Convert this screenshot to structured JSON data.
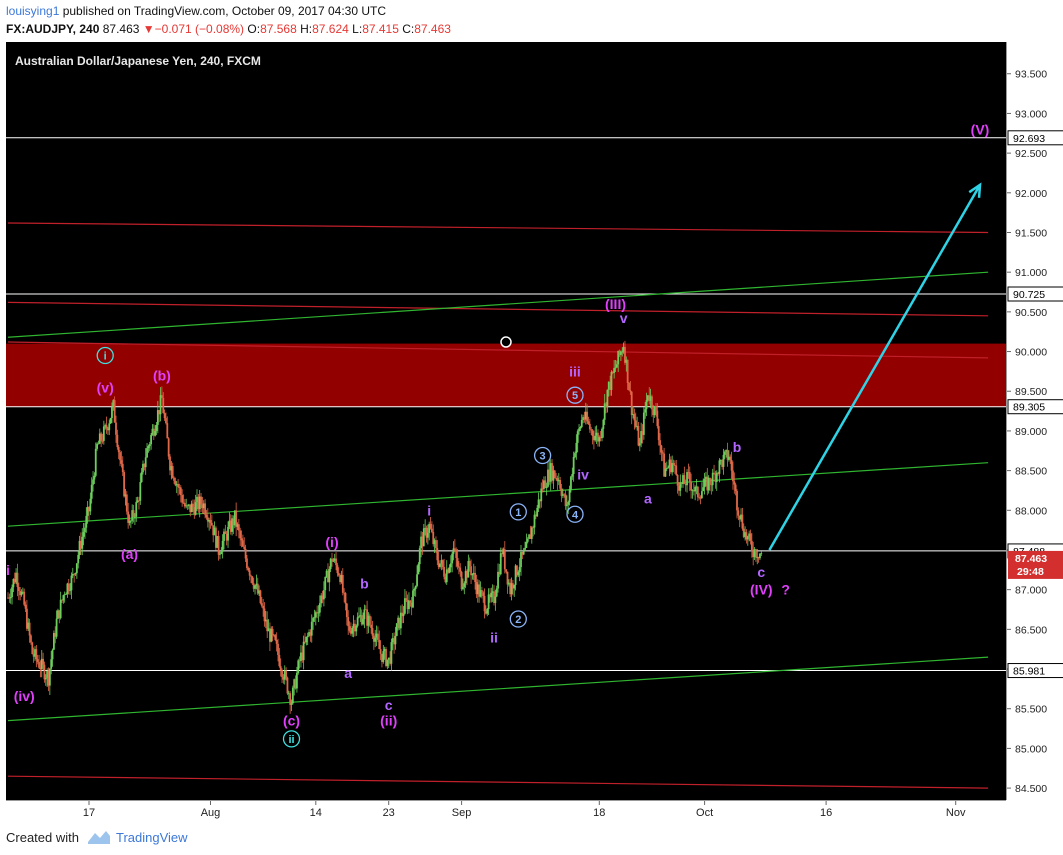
{
  "header": {
    "author": "louisying1",
    "published": " published on TradingView.com, October 09, 2017 04:30 UTC",
    "symbol": "FX:AUDJPY, 240",
    "last": "87.463",
    "change": "−0.071 (−0.08%)",
    "open_label": "O:",
    "open": "87.568",
    "high_label": "H:",
    "high": "87.624",
    "low_label": "L:",
    "low": "87.415",
    "close_label": "C:",
    "close": "87.463"
  },
  "chart_title": "Australian Dollar/Japanese Yen, 240, FXCM",
  "footer": {
    "created": "Created with",
    "brand": "TradingView"
  },
  "colors": {
    "background": "#000000",
    "candle_up": "#6ccf5c",
    "candle_down": "#e06848",
    "zone": "#a00000",
    "red_line": "#c0202a",
    "green_line": "#2fb52f",
    "horizontal_line": "#ffffff",
    "arrow": "#2fd3e6",
    "label_magenta": "#e040fb",
    "label_violet": "#b266ff",
    "label_circled_blue": "#8ab4f8",
    "label_circled_cyan": "#40e0e0"
  },
  "chart_data": {
    "type": "candlestick",
    "title": "Australian Dollar/Japanese Yen, 240, FXCM",
    "ylim": [
      84.35,
      93.9
    ],
    "y_ticks": [
      "84.500",
      "85.000",
      "85.500",
      "86.000",
      "86.500",
      "87.000",
      "87.500",
      "88.000",
      "88.500",
      "89.000",
      "89.500",
      "90.000",
      "90.500",
      "91.000",
      "91.500",
      "92.000",
      "92.500",
      "93.000",
      "93.500"
    ],
    "x_ticks": [
      "17",
      "Aug",
      "14",
      "23",
      "Sep",
      "18",
      "Oct",
      "16",
      "Nov"
    ],
    "price_path": [
      {
        "date": "Jul 7",
        "price": 86.9
      },
      {
        "date": "Jul 8",
        "price": 87.2
      },
      {
        "date": "Jul 9",
        "price": 86.8
      },
      {
        "date": "Jul 10",
        "price": 86.2
      },
      {
        "date": "Jul 11",
        "price": 86.05
      },
      {
        "date": "Jul 12",
        "price": 85.9
      },
      {
        "date": "Jul 13",
        "price": 86.6
      },
      {
        "date": "Jul 14",
        "price": 87.0
      },
      {
        "date": "Jul 15",
        "price": 87.15
      },
      {
        "date": "Jul 16",
        "price": 87.6
      },
      {
        "date": "Jul 17",
        "price": 88.0
      },
      {
        "date": "Jul 18",
        "price": 88.8
      },
      {
        "date": "Jul 19",
        "price": 89.0
      },
      {
        "date": "Jul 20",
        "price": 89.3
      },
      {
        "date": "Jul 21",
        "price": 88.5
      },
      {
        "date": "Jul 22",
        "price": 87.8
      },
      {
        "date": "Jul 23",
        "price": 88.1
      },
      {
        "date": "Jul 24",
        "price": 88.7
      },
      {
        "date": "Jul 26",
        "price": 89.4
      },
      {
        "date": "Jul 27",
        "price": 88.6
      },
      {
        "date": "Jul 28",
        "price": 88.3
      },
      {
        "date": "Jul 29",
        "price": 88.0
      },
      {
        "date": "Jul 31",
        "price": 88.1
      },
      {
        "date": "Aug 1",
        "price": 87.9
      },
      {
        "date": "Aug 2",
        "price": 87.5
      },
      {
        "date": "Aug 3",
        "price": 87.7
      },
      {
        "date": "Aug 4",
        "price": 87.9
      },
      {
        "date": "Aug 5",
        "price": 87.5
      },
      {
        "date": "Aug 7",
        "price": 86.9
      },
      {
        "date": "Aug 8",
        "price": 86.5
      },
      {
        "date": "Aug 9",
        "price": 86.3
      },
      {
        "date": "Aug 11",
        "price": 85.6
      },
      {
        "date": "Aug 12",
        "price": 86.1
      },
      {
        "date": "Aug 13",
        "price": 86.4
      },
      {
        "date": "Aug 14",
        "price": 86.7
      },
      {
        "date": "Aug 15",
        "price": 87.0
      },
      {
        "date": "Aug 16",
        "price": 87.4
      },
      {
        "date": "Aug 17",
        "price": 87.2
      },
      {
        "date": "Aug 18",
        "price": 86.5
      },
      {
        "date": "Aug 19",
        "price": 86.6
      },
      {
        "date": "Aug 20",
        "price": 86.7
      },
      {
        "date": "Aug 21",
        "price": 86.5
      },
      {
        "date": "Aug 22",
        "price": 86.2
      },
      {
        "date": "Aug 23",
        "price": 86.1
      },
      {
        "date": "Aug 24",
        "price": 86.5
      },
      {
        "date": "Aug 25",
        "price": 86.8
      },
      {
        "date": "Aug 26",
        "price": 86.9
      },
      {
        "date": "Aug 27",
        "price": 87.6
      },
      {
        "date": "Aug 28",
        "price": 87.8
      },
      {
        "date": "Aug 29",
        "price": 87.4
      },
      {
        "date": "Aug 30",
        "price": 87.2
      },
      {
        "date": "Aug 31",
        "price": 87.5
      },
      {
        "date": "Sep 1",
        "price": 87.1
      },
      {
        "date": "Sep 2",
        "price": 87.3
      },
      {
        "date": "Sep 3",
        "price": 87.0
      },
      {
        "date": "Sep 4",
        "price": 86.8
      },
      {
        "date": "Sep 5",
        "price": 86.9
      },
      {
        "date": "Sep 6",
        "price": 87.5
      },
      {
        "date": "Sep 7",
        "price": 87.0
      },
      {
        "date": "Sep 8",
        "price": 87.3
      },
      {
        "date": "Sep 9",
        "price": 87.5
      },
      {
        "date": "Sep 10",
        "price": 87.9
      },
      {
        "date": "Sep 11",
        "price": 88.3
      },
      {
        "date": "Sep 12",
        "price": 88.5
      },
      {
        "date": "Sep 13",
        "price": 88.4
      },
      {
        "date": "Sep 14",
        "price": 88.0
      },
      {
        "date": "Sep 15",
        "price": 88.8
      },
      {
        "date": "Sep 16",
        "price": 89.2
      },
      {
        "date": "Sep 17",
        "price": 89.0
      },
      {
        "date": "Sep 18",
        "price": 88.9
      },
      {
        "date": "Sep 19",
        "price": 89.5
      },
      {
        "date": "Sep 20",
        "price": 89.8
      },
      {
        "date": "Sep 21",
        "price": 90.1
      },
      {
        "date": "Sep 22",
        "price": 89.3
      },
      {
        "date": "Sep 23",
        "price": 88.8
      },
      {
        "date": "Sep 24",
        "price": 89.5
      },
      {
        "date": "Sep 25",
        "price": 89.2
      },
      {
        "date": "Sep 26",
        "price": 88.5
      },
      {
        "date": "Sep 27",
        "price": 88.6
      },
      {
        "date": "Sep 28",
        "price": 88.3
      },
      {
        "date": "Sep 29",
        "price": 88.4
      },
      {
        "date": "Sep 30",
        "price": 88.2
      },
      {
        "date": "Oct 1",
        "price": 88.3
      },
      {
        "date": "Oct 2",
        "price": 88.4
      },
      {
        "date": "Oct 3",
        "price": 88.6
      },
      {
        "date": "Oct 4",
        "price": 88.7
      },
      {
        "date": "Oct 5",
        "price": 88.1
      },
      {
        "date": "Oct 6",
        "price": 87.7
      },
      {
        "date": "Oct 7",
        "price": 87.5
      },
      {
        "date": "Oct 8",
        "price": 87.46
      }
    ],
    "zone": {
      "price_from": 89.305,
      "price_to": 90.1
    },
    "horizontal_lines": [
      {
        "price": 92.693,
        "label": "92.693"
      },
      {
        "price": 90.725,
        "label": "90.725"
      },
      {
        "price": 89.305,
        "label": "89.305"
      },
      {
        "price": 87.488,
        "label": "87.488"
      },
      {
        "price": 85.981,
        "label": "85.981"
      }
    ],
    "current_price": {
      "value": "87.463",
      "countdown": "29:48"
    },
    "trend_lines": [
      {
        "color": "red",
        "from": {
          "date": "Jul 7",
          "price": 91.62
        },
        "to": {
          "date": "Nov 5",
          "price": 91.5
        }
      },
      {
        "color": "red",
        "from": {
          "date": "Jul 7",
          "price": 90.62
        },
        "to": {
          "date": "Nov 5",
          "price": 90.45
        }
      },
      {
        "color": "red",
        "from": {
          "date": "Jul 7",
          "price": 90.12
        },
        "to": {
          "date": "Nov 5",
          "price": 89.92
        }
      },
      {
        "color": "red",
        "from": {
          "date": "Jul 7",
          "price": 84.65
        },
        "to": {
          "date": "Nov 5",
          "price": 84.5
        }
      },
      {
        "color": "green",
        "from": {
          "date": "Jul 7",
          "price": 90.18
        },
        "to": {
          "date": "Nov 5",
          "price": 91.0
        }
      },
      {
        "color": "green",
        "from": {
          "date": "Jul 7",
          "price": 87.8
        },
        "to": {
          "date": "Nov 5",
          "price": 88.6
        }
      },
      {
        "color": "green",
        "from": {
          "date": "Jul 7",
          "price": 85.35
        },
        "to": {
          "date": "Nov 5",
          "price": 86.15
        }
      }
    ],
    "projection_arrow": {
      "from": {
        "date": "Oct 9",
        "price": 87.5
      },
      "to": {
        "date": "Nov 4",
        "price": 92.1
      }
    },
    "wave_labels": [
      {
        "text": "i",
        "date": "Jul 7",
        "price": 87.25,
        "style": "magenta"
      },
      {
        "text": "(iv)",
        "date": "Jul 9",
        "price": 85.66,
        "style": "magenta"
      },
      {
        "text": "(v)",
        "date": "Jul 19",
        "price": 89.55,
        "style": "magenta"
      },
      {
        "text": "i",
        "date": "Jul 19",
        "price": 89.95,
        "style": "cyan-circle"
      },
      {
        "text": "(a)",
        "date": "Jul 22",
        "price": 87.45,
        "style": "magenta"
      },
      {
        "text": "(b)",
        "date": "Jul 26",
        "price": 89.7,
        "style": "magenta"
      },
      {
        "text": "(c)",
        "date": "Aug 11",
        "price": 85.35,
        "style": "magenta"
      },
      {
        "text": "ii",
        "date": "Aug 11",
        "price": 85.12,
        "style": "cyan-circle"
      },
      {
        "text": "(i)",
        "date": "Aug 16",
        "price": 87.6,
        "style": "magenta"
      },
      {
        "text": "a",
        "date": "Aug 18",
        "price": 85.95,
        "style": "violet"
      },
      {
        "text": "b",
        "date": "Aug 20",
        "price": 87.08,
        "style": "violet"
      },
      {
        "text": "c",
        "date": "Aug 23",
        "price": 85.55,
        "style": "violet"
      },
      {
        "text": "(ii)",
        "date": "Aug 23",
        "price": 85.35,
        "style": "magenta"
      },
      {
        "text": "i",
        "date": "Aug 28",
        "price": 88.0,
        "style": "violet"
      },
      {
        "text": "ii",
        "date": "Sep 5",
        "price": 86.4,
        "style": "violet"
      },
      {
        "text": "1",
        "date": "Sep 8",
        "price": 87.98,
        "style": "blue-circle"
      },
      {
        "text": "2",
        "date": "Sep 8",
        "price": 86.63,
        "style": "blue-circle"
      },
      {
        "text": "3",
        "date": "Sep 11",
        "price": 88.69,
        "style": "blue-circle"
      },
      {
        "text": "4",
        "date": "Sep 15",
        "price": 87.95,
        "style": "blue-circle"
      },
      {
        "text": "5",
        "date": "Sep 15",
        "price": 89.45,
        "style": "blue-circle"
      },
      {
        "text": "iii",
        "date": "Sep 15",
        "price": 89.75,
        "style": "violet"
      },
      {
        "text": "iv",
        "date": "Sep 16",
        "price": 88.45,
        "style": "violet"
      },
      {
        "text": "(III)",
        "date": "Sep 20",
        "price": 90.6,
        "style": "magenta"
      },
      {
        "text": "v",
        "date": "Sep 21",
        "price": 90.42,
        "style": "violet"
      },
      {
        "text": "a",
        "date": "Sep 24",
        "price": 88.15,
        "style": "violet"
      },
      {
        "text": "b",
        "date": "Oct 5",
        "price": 88.8,
        "style": "violet"
      },
      {
        "text": "c",
        "date": "Oct 8",
        "price": 87.22,
        "style": "violet"
      },
      {
        "text": "(IV)",
        "date": "Oct 8",
        "price": 87.0,
        "style": "magenta"
      },
      {
        "text": "?",
        "date": "Oct 11",
        "price": 87.0,
        "style": "magenta"
      },
      {
        "text": "(V)",
        "date": "Nov 4",
        "price": 92.8,
        "style": "magenta"
      }
    ]
  }
}
